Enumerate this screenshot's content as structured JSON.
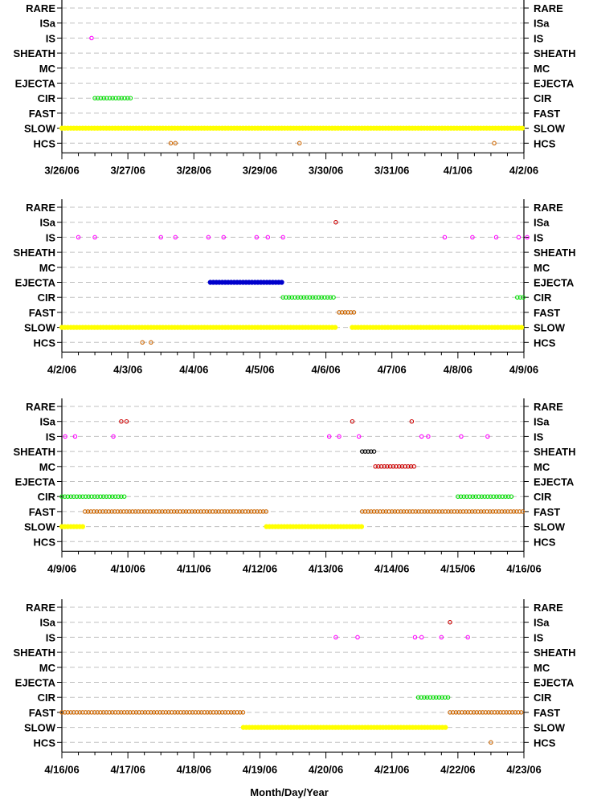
{
  "chart_data": {
    "type": "scatter",
    "xlabel": "Month/Day/Year",
    "categories": [
      "RARE",
      "ISa",
      "IS",
      "SHEATH",
      "MC",
      "EJECTA",
      "CIR",
      "FAST",
      "SLOW",
      "HCS"
    ],
    "colors": {
      "IS": "#ff00ff",
      "ISa": "#cc0000",
      "SHEATH": "#000000",
      "MC": "#cc0000",
      "EJECTA": "#0000cc",
      "CIR": "#00dd00",
      "FAST": "#cc6600",
      "SLOW": "#ffff00",
      "HCS": "#cc6600",
      "RARE": "#999999"
    },
    "grid": true,
    "panels": [
      {
        "xlim": [
          0,
          7
        ],
        "ticks": [
          "3/26/06",
          "3/27/06",
          "3/28/06",
          "3/29/06",
          "3/30/06",
          "3/31/06",
          "4/1/06",
          "4/2/06"
        ],
        "series": [
          {
            "category": "IS",
            "points": [
              0.45
            ]
          },
          {
            "category": "CIR",
            "ranges": [
              [
                0.5,
                1.05
              ]
            ]
          },
          {
            "category": "SLOW",
            "ranges": [
              [
                0.0,
                7.0
              ]
            ]
          },
          {
            "category": "HCS",
            "points": [
              1.65,
              1.72,
              3.6,
              6.55
            ]
          }
        ]
      },
      {
        "xlim": [
          0,
          7
        ],
        "ticks": [
          "4/2/06",
          "4/3/06",
          "4/4/06",
          "4/5/06",
          "4/6/06",
          "4/7/06",
          "4/8/06",
          "4/9/06"
        ],
        "series": [
          {
            "category": "ISa",
            "points": [
              4.15
            ]
          },
          {
            "category": "IS",
            "points": [
              0.25,
              0.5,
              1.5,
              1.72,
              2.22,
              2.45,
              2.95,
              3.12,
              3.35,
              5.8,
              6.22,
              6.58,
              6.92,
              7.05
            ]
          },
          {
            "category": "EJECTA",
            "ranges": [
              [
                2.25,
                3.35
              ]
            ]
          },
          {
            "category": "CIR",
            "ranges": [
              [
                3.35,
                4.15
              ],
              [
                6.9,
                7.0
              ]
            ]
          },
          {
            "category": "FAST",
            "ranges": [
              [
                4.2,
                4.45
              ]
            ]
          },
          {
            "category": "SLOW",
            "ranges": [
              [
                0.0,
                4.15
              ],
              [
                4.4,
                7.0
              ]
            ]
          },
          {
            "category": "HCS",
            "points": [
              1.22,
              1.35
            ]
          }
        ]
      },
      {
        "xlim": [
          0,
          7
        ],
        "ticks": [
          "4/9/06",
          "4/10/06",
          "4/11/06",
          "4/12/06",
          "4/13/06",
          "4/14/06",
          "4/15/06",
          "4/16/06"
        ],
        "series": [
          {
            "category": "ISa",
            "points": [
              0.9,
              0.98,
              4.4,
              5.3
            ]
          },
          {
            "category": "IS",
            "points": [
              0.05,
              0.2,
              0.78,
              4.05,
              4.2,
              4.5,
              5.45,
              5.55,
              6.05,
              6.45
            ]
          },
          {
            "category": "SHEATH",
            "ranges": [
              [
                4.55,
                4.75
              ]
            ]
          },
          {
            "category": "MC",
            "ranges": [
              [
                4.75,
                5.35
              ]
            ]
          },
          {
            "category": "CIR",
            "ranges": [
              [
                0.0,
                0.98
              ],
              [
                6.0,
                6.85
              ]
            ]
          },
          {
            "category": "FAST",
            "ranges": [
              [
                0.35,
                3.1
              ],
              [
                4.55,
                7.0
              ]
            ]
          },
          {
            "category": "SLOW",
            "ranges": [
              [
                0.0,
                0.35
              ],
              [
                3.1,
                4.55
              ]
            ]
          }
        ]
      },
      {
        "xlim": [
          0,
          7
        ],
        "ticks": [
          "4/16/06",
          "4/17/06",
          "4/18/06",
          "4/19/06",
          "4/20/06",
          "4/21/06",
          "4/22/06",
          "4/23/06"
        ],
        "series": [
          {
            "category": "ISa",
            "points": [
              5.88
            ]
          },
          {
            "category": "IS",
            "points": [
              4.15,
              4.48,
              5.35,
              5.45,
              5.75,
              6.15
            ]
          },
          {
            "category": "CIR",
            "ranges": [
              [
                5.4,
                5.85
              ]
            ]
          },
          {
            "category": "FAST",
            "ranges": [
              [
                0.0,
                2.75
              ],
              [
                5.88,
                7.0
              ]
            ]
          },
          {
            "category": "SLOW",
            "ranges": [
              [
                2.75,
                5.85
              ]
            ]
          },
          {
            "category": "HCS",
            "points": [
              6.5
            ]
          }
        ]
      }
    ]
  }
}
